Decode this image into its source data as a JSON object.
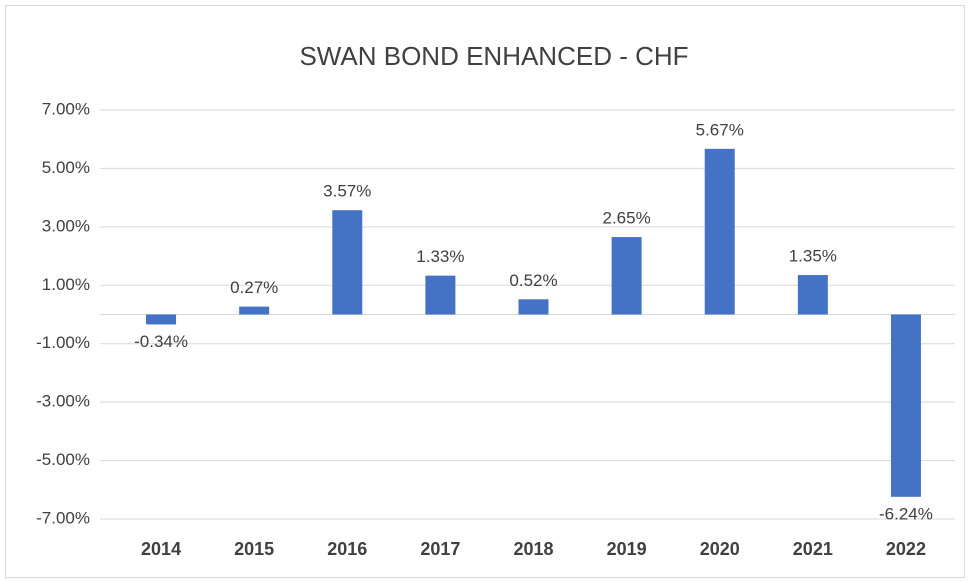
{
  "chart_data": {
    "type": "bar",
    "title": "SWAN BOND ENHANCED - CHF",
    "categories": [
      "2014",
      "2015",
      "2016",
      "2017",
      "2018",
      "2019",
      "2020",
      "2021",
      "2022"
    ],
    "values": [
      -0.34,
      0.27,
      3.57,
      1.33,
      0.52,
      2.65,
      5.67,
      1.35,
      -6.24
    ],
    "value_labels": [
      "-0.34%",
      "0.27%",
      "3.57%",
      "1.33%",
      "0.52%",
      "2.65%",
      "5.67%",
      "1.35%",
      "-6.24%"
    ],
    "color": "#4472c4",
    "ylim": [
      -7,
      7
    ],
    "yticks": [
      {
        "value": -7,
        "label": "-7.00%"
      },
      {
        "value": -5,
        "label": "-5.00%"
      },
      {
        "value": -3,
        "label": "-3.00%"
      },
      {
        "value": -1,
        "label": "-1.00%"
      },
      {
        "value": 1,
        "label": "1.00%"
      },
      {
        "value": 3,
        "label": "3.00%"
      },
      {
        "value": 5,
        "label": "5.00%"
      },
      {
        "value": 7,
        "label": "7.00%"
      }
    ],
    "grid": true
  }
}
